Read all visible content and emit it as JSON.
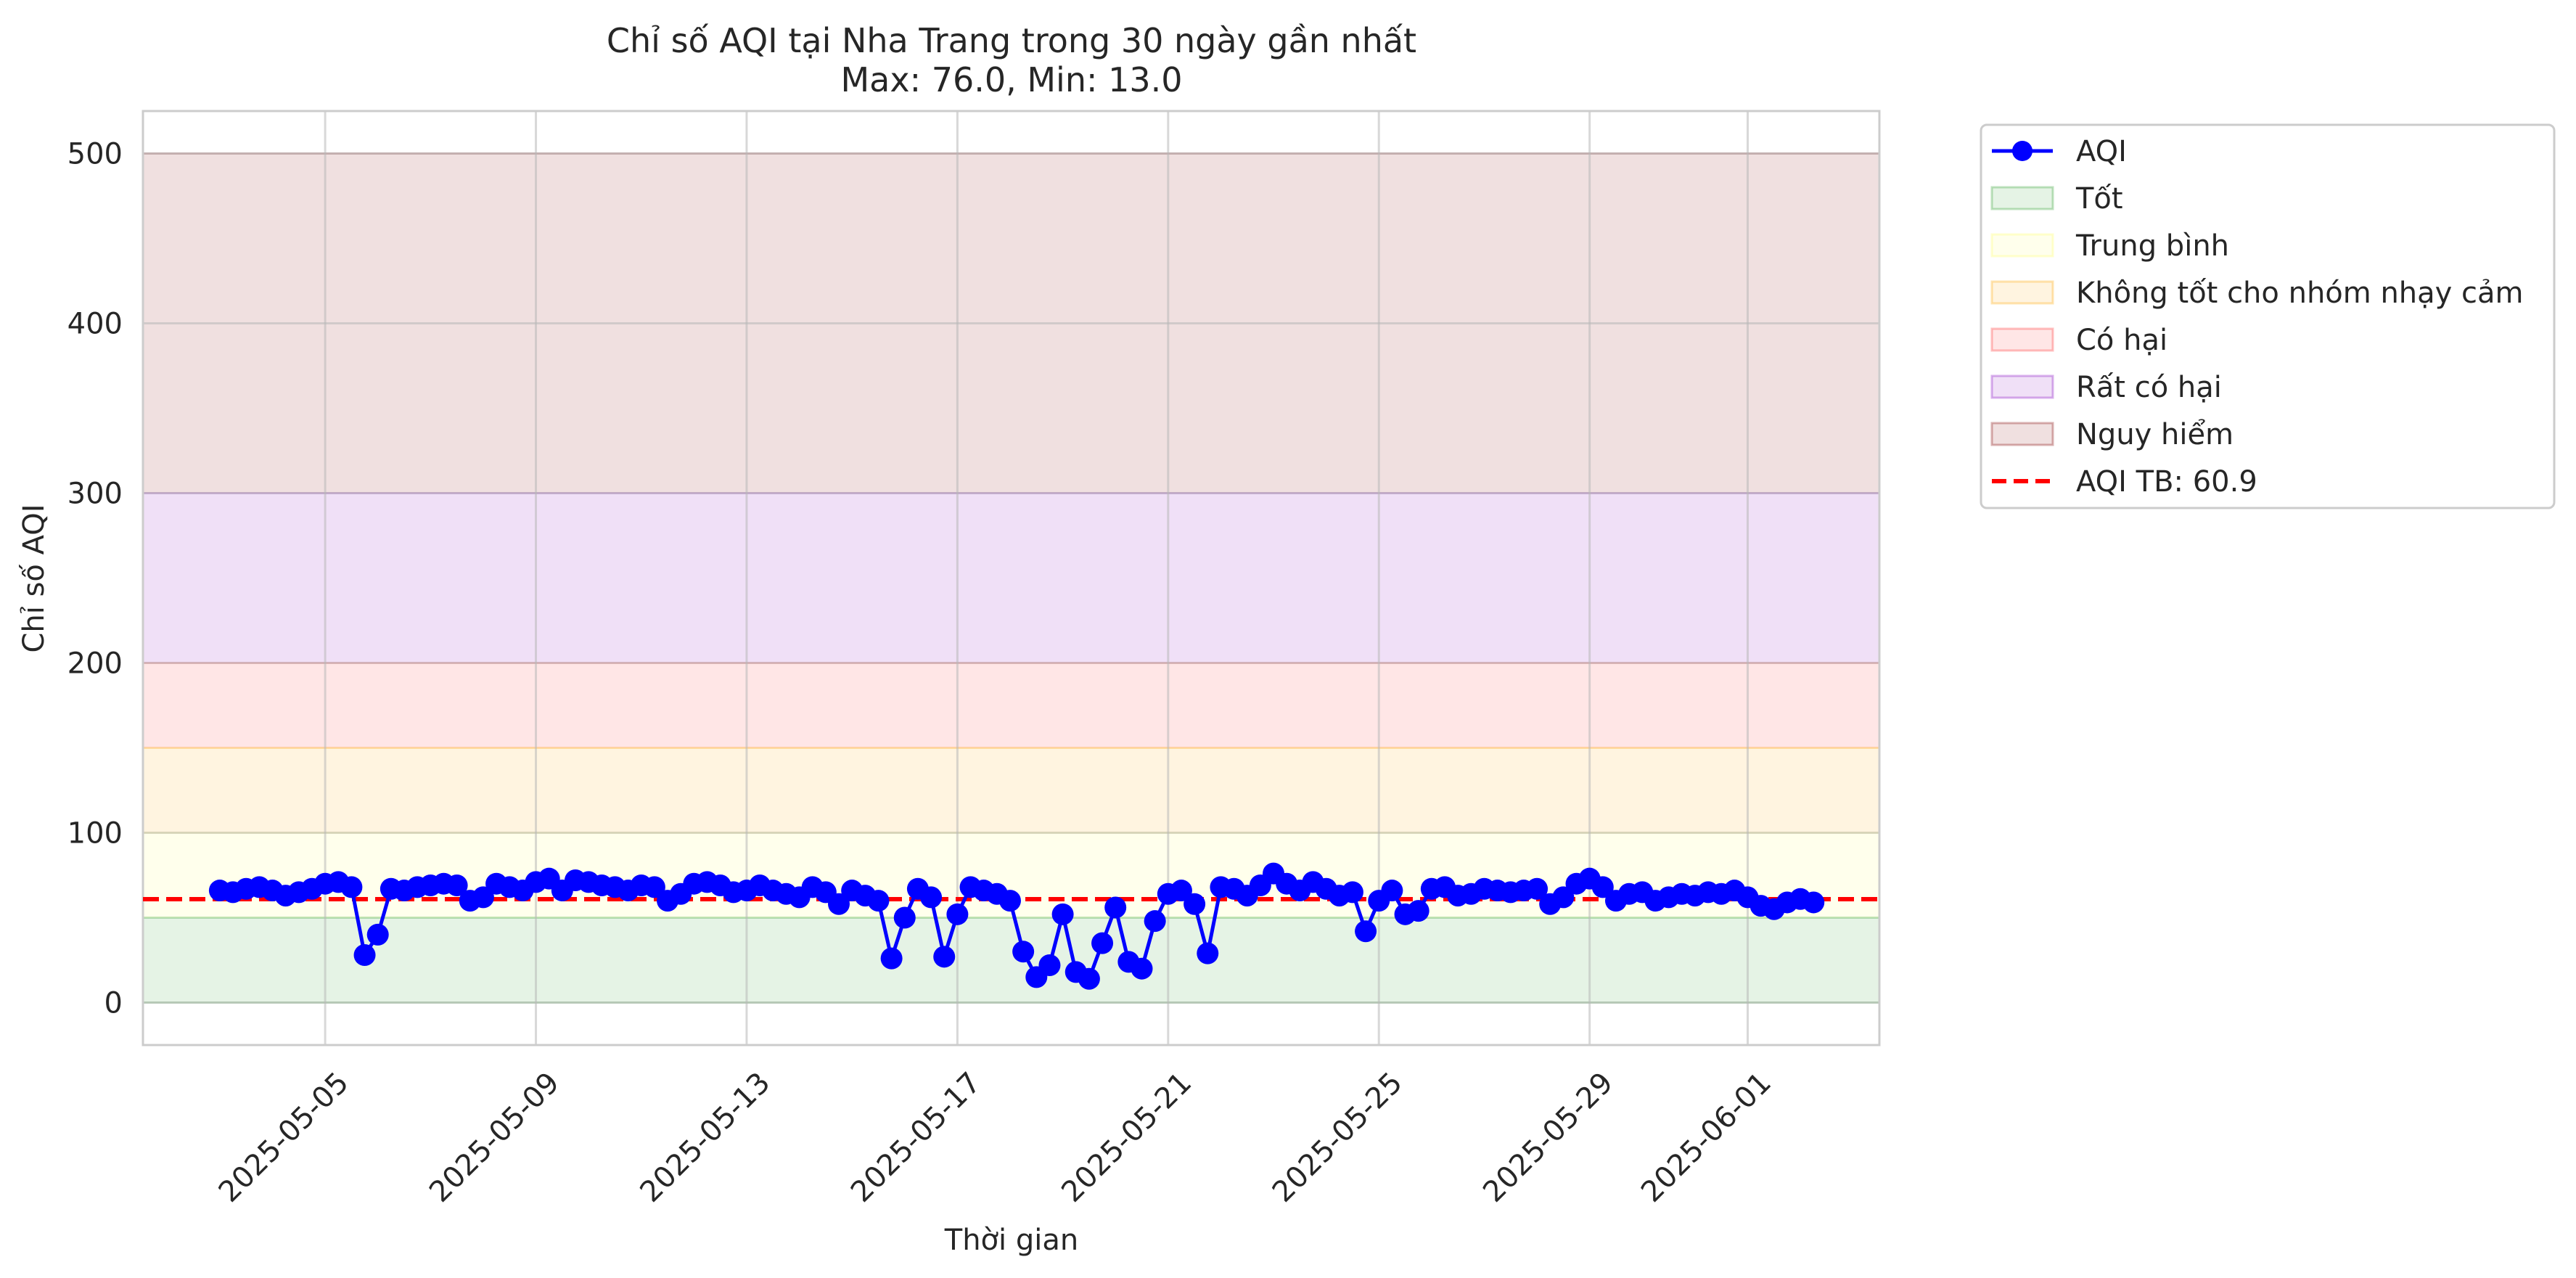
{
  "chart_data": {
    "type": "line",
    "title": "Chỉ số AQI tại Nha Trang trong 30 ngày gần nhất",
    "subtitle": "Max: 76.0, Min: 13.0",
    "xlabel": "Thời gian",
    "ylabel": "Chỉ số AQI",
    "x_tick_labels": [
      "2025-05-05",
      "2025-05-09",
      "2025-05-13",
      "2025-05-17",
      "2025-05-21",
      "2025-05-25",
      "2025-05-29",
      "2025-06-01"
    ],
    "x_tick_dates": [
      "2025-05-05",
      "2025-05-09",
      "2025-05-13",
      "2025-05-17",
      "2025-05-21",
      "2025-05-25",
      "2025-05-29",
      "2025-06-01"
    ],
    "xlim": [
      "2025-05-01T13:00",
      "2025-06-03T12:00"
    ],
    "y_tick_labels": [
      "0",
      "100",
      "200",
      "300",
      "400",
      "500"
    ],
    "y_ticks": [
      0,
      100,
      200,
      300,
      400,
      500
    ],
    "ylim": [
      -25,
      525
    ],
    "grid": true,
    "legend_position": "outside-top-right",
    "bands": [
      {
        "name": "Tốt",
        "from": 0,
        "to": 50,
        "color": "#2ca02c"
      },
      {
        "name": "Trung bình",
        "from": 50,
        "to": 100,
        "color": "#ffff66"
      },
      {
        "name": "Không tốt cho nhóm nhạy cảm",
        "from": 100,
        "to": 150,
        "color": "#ffa500"
      },
      {
        "name": "Có hại",
        "from": 150,
        "to": 200,
        "color": "#ff3030"
      },
      {
        "name": "Rất có hại",
        "from": 200,
        "to": 300,
        "color": "#8000c0"
      },
      {
        "name": "Nguy hiểm",
        "from": 300,
        "to": 500,
        "color": "#800000"
      }
    ],
    "series": [
      {
        "name": "AQI",
        "color": "#0000ff",
        "points": [
          [
            "2025-05-03T00:00",
            66
          ],
          [
            "2025-05-03T06:00",
            65
          ],
          [
            "2025-05-03T12:00",
            67
          ],
          [
            "2025-05-03T18:00",
            68
          ],
          [
            "2025-05-04T00:00",
            66
          ],
          [
            "2025-05-04T06:00",
            63
          ],
          [
            "2025-05-04T12:00",
            65
          ],
          [
            "2025-05-04T18:00",
            67
          ],
          [
            "2025-05-05T00:00",
            70
          ],
          [
            "2025-05-05T06:00",
            71
          ],
          [
            "2025-05-05T12:00",
            68
          ],
          [
            "2025-05-05T18:00",
            28
          ],
          [
            "2025-05-06T00:00",
            40
          ],
          [
            "2025-05-06T06:00",
            67
          ],
          [
            "2025-05-06T12:00",
            66
          ],
          [
            "2025-05-06T18:00",
            68
          ],
          [
            "2025-05-07T00:00",
            69
          ],
          [
            "2025-05-07T06:00",
            70
          ],
          [
            "2025-05-07T12:00",
            69
          ],
          [
            "2025-05-07T18:00",
            60
          ],
          [
            "2025-05-08T00:00",
            62
          ],
          [
            "2025-05-08T06:00",
            70
          ],
          [
            "2025-05-08T12:00",
            68
          ],
          [
            "2025-05-08T18:00",
            66
          ],
          [
            "2025-05-09T00:00",
            71
          ],
          [
            "2025-05-09T06:00",
            73
          ],
          [
            "2025-05-09T12:00",
            66
          ],
          [
            "2025-05-09T18:00",
            72
          ],
          [
            "2025-05-10T00:00",
            71
          ],
          [
            "2025-05-10T06:00",
            69
          ],
          [
            "2025-05-10T12:00",
            68
          ],
          [
            "2025-05-10T18:00",
            66
          ],
          [
            "2025-05-11T00:00",
            69
          ],
          [
            "2025-05-11T06:00",
            68
          ],
          [
            "2025-05-11T12:00",
            60
          ],
          [
            "2025-05-11T18:00",
            64
          ],
          [
            "2025-05-12T00:00",
            70
          ],
          [
            "2025-05-12T06:00",
            71
          ],
          [
            "2025-05-12T12:00",
            69
          ],
          [
            "2025-05-12T18:00",
            65
          ],
          [
            "2025-05-13T00:00",
            66
          ],
          [
            "2025-05-13T06:00",
            69
          ],
          [
            "2025-05-13T12:00",
            66
          ],
          [
            "2025-05-13T18:00",
            64
          ],
          [
            "2025-05-14T00:00",
            62
          ],
          [
            "2025-05-14T06:00",
            68
          ],
          [
            "2025-05-14T12:00",
            65
          ],
          [
            "2025-05-14T18:00",
            58
          ],
          [
            "2025-05-15T00:00",
            66
          ],
          [
            "2025-05-15T06:00",
            63
          ],
          [
            "2025-05-15T12:00",
            60
          ],
          [
            "2025-05-15T18:00",
            26
          ],
          [
            "2025-05-16T00:00",
            50
          ],
          [
            "2025-05-16T06:00",
            67
          ],
          [
            "2025-05-16T12:00",
            62
          ],
          [
            "2025-05-16T18:00",
            27
          ],
          [
            "2025-05-17T00:00",
            52
          ],
          [
            "2025-05-17T06:00",
            68
          ],
          [
            "2025-05-17T12:00",
            66
          ],
          [
            "2025-05-17T18:00",
            64
          ],
          [
            "2025-05-18T00:00",
            60
          ],
          [
            "2025-05-18T06:00",
            30
          ],
          [
            "2025-05-18T12:00",
            15
          ],
          [
            "2025-05-18T18:00",
            22
          ],
          [
            "2025-05-19T00:00",
            52
          ],
          [
            "2025-05-19T06:00",
            18
          ],
          [
            "2025-05-19T12:00",
            14
          ],
          [
            "2025-05-19T18:00",
            35
          ],
          [
            "2025-05-20T00:00",
            56
          ],
          [
            "2025-05-20T06:00",
            24
          ],
          [
            "2025-05-20T12:00",
            20
          ],
          [
            "2025-05-20T18:00",
            48
          ],
          [
            "2025-05-21T00:00",
            64
          ],
          [
            "2025-05-21T06:00",
            66
          ],
          [
            "2025-05-21T12:00",
            58
          ],
          [
            "2025-05-21T18:00",
            29
          ],
          [
            "2025-05-22T00:00",
            68
          ],
          [
            "2025-05-22T06:00",
            67
          ],
          [
            "2025-05-22T12:00",
            63
          ],
          [
            "2025-05-22T18:00",
            69
          ],
          [
            "2025-05-23T00:00",
            76
          ],
          [
            "2025-05-23T06:00",
            70
          ],
          [
            "2025-05-23T12:00",
            66
          ],
          [
            "2025-05-23T18:00",
            71
          ],
          [
            "2025-05-24T00:00",
            67
          ],
          [
            "2025-05-24T06:00",
            63
          ],
          [
            "2025-05-24T12:00",
            65
          ],
          [
            "2025-05-24T18:00",
            42
          ],
          [
            "2025-05-25T00:00",
            60
          ],
          [
            "2025-05-25T06:00",
            66
          ],
          [
            "2025-05-25T12:00",
            52
          ],
          [
            "2025-05-25T18:00",
            54
          ],
          [
            "2025-05-26T00:00",
            67
          ],
          [
            "2025-05-26T06:00",
            68
          ],
          [
            "2025-05-26T12:00",
            63
          ],
          [
            "2025-05-26T18:00",
            64
          ],
          [
            "2025-05-27T00:00",
            67
          ],
          [
            "2025-05-27T06:00",
            66
          ],
          [
            "2025-05-27T12:00",
            65
          ],
          [
            "2025-05-27T18:00",
            66
          ],
          [
            "2025-05-28T00:00",
            67
          ],
          [
            "2025-05-28T06:00",
            58
          ],
          [
            "2025-05-28T12:00",
            62
          ],
          [
            "2025-05-28T18:00",
            70
          ],
          [
            "2025-05-29T00:00",
            73
          ],
          [
            "2025-05-29T06:00",
            68
          ],
          [
            "2025-05-29T12:00",
            60
          ],
          [
            "2025-05-29T18:00",
            64
          ],
          [
            "2025-05-30T00:00",
            65
          ],
          [
            "2025-05-30T06:00",
            60
          ],
          [
            "2025-05-30T12:00",
            62
          ],
          [
            "2025-05-30T18:00",
            64
          ],
          [
            "2025-05-31T00:00",
            63
          ],
          [
            "2025-05-31T06:00",
            65
          ],
          [
            "2025-05-31T12:00",
            64
          ],
          [
            "2025-05-31T18:00",
            66
          ],
          [
            "2025-06-01T00:00",
            62
          ],
          [
            "2025-06-01T06:00",
            57
          ],
          [
            "2025-06-01T12:00",
            55
          ],
          [
            "2025-06-01T18:00",
            59
          ],
          [
            "2025-06-02T00:00",
            61
          ],
          [
            "2025-06-02T06:00",
            59
          ]
        ]
      },
      {
        "name": "AQI TB: 60.9",
        "color": "#ff0000",
        "style": "dashed",
        "value": 60.9
      }
    ]
  }
}
